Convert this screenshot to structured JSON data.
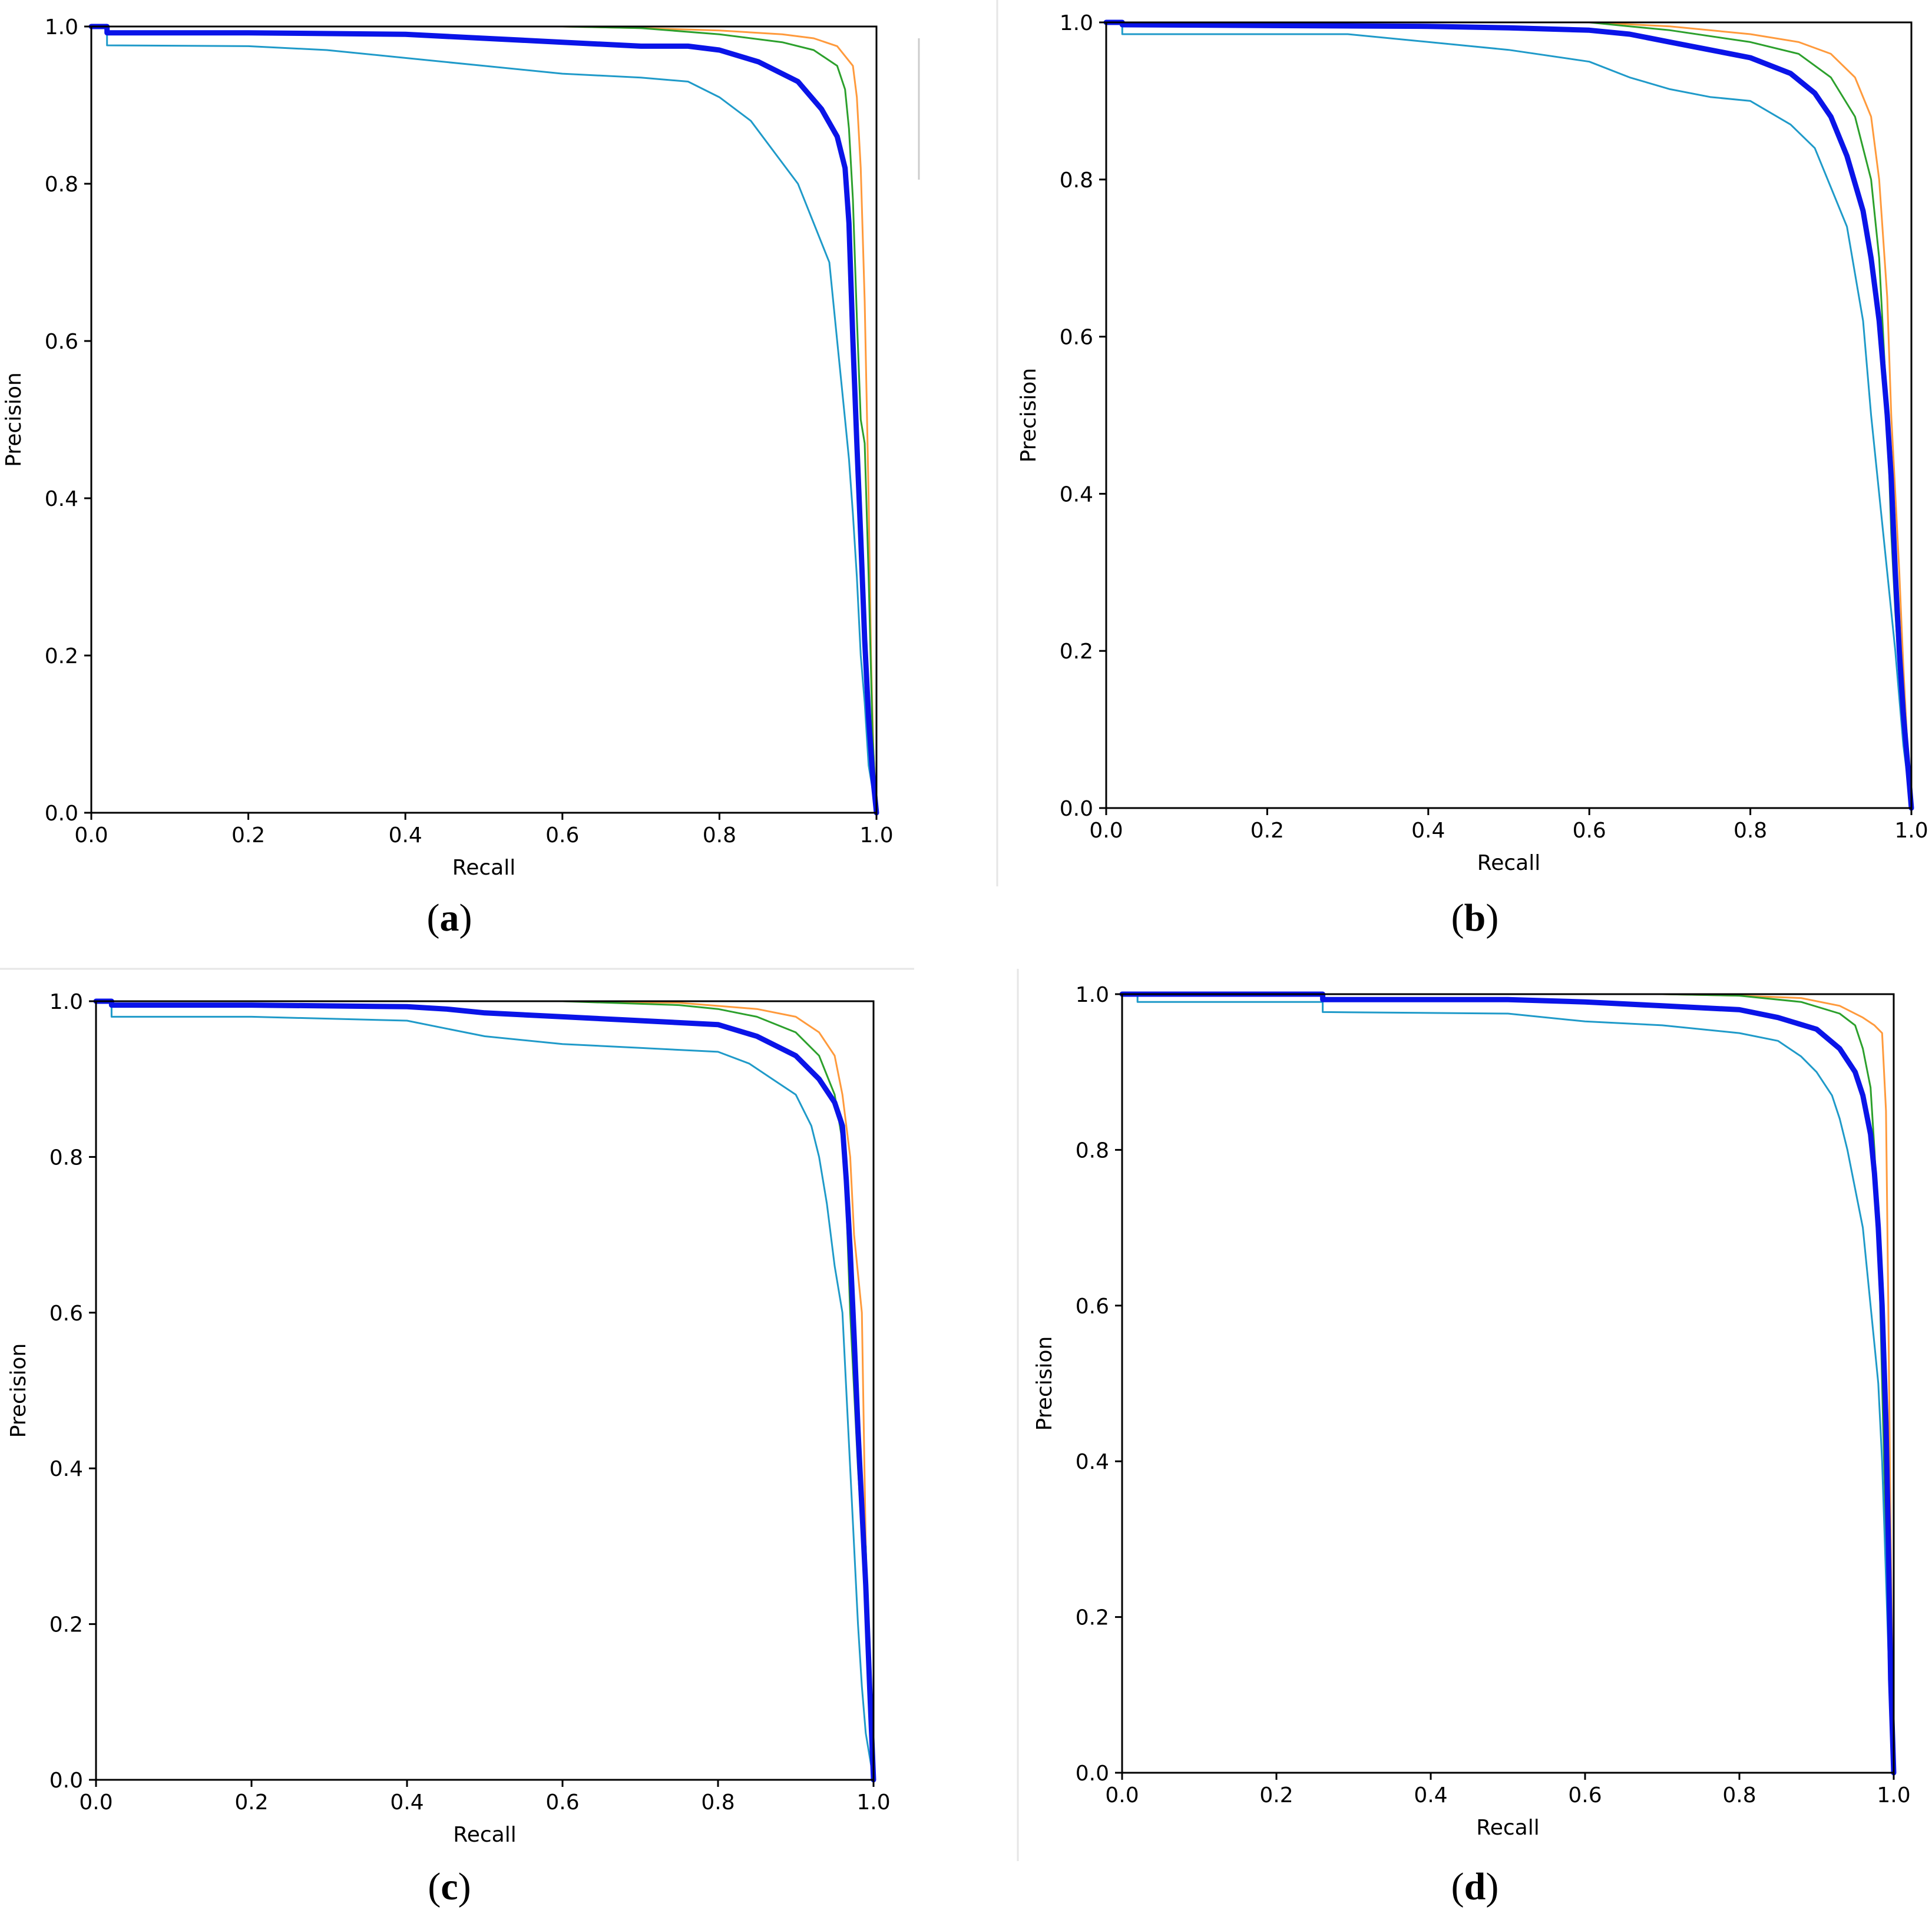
{
  "panel_labels": [
    {
      "pre": "(",
      "letter": "a",
      "post": ")"
    },
    {
      "pre": "(",
      "letter": "b",
      "post": ")"
    },
    {
      "pre": "(",
      "letter": "c",
      "post": ")"
    },
    {
      "pre": "(",
      "letter": "d",
      "post": ")"
    }
  ],
  "colors": {
    "mean": "#0a14e8",
    "orange": "#ff9a3c",
    "green": "#2ca02c",
    "cyan": "#1f9ac9",
    "axis": "#000000",
    "separator": "#e6e6e6"
  },
  "chart_data": [
    {
      "type": "line",
      "panel": "a",
      "xlabel": "Recall",
      "ylabel": "Precision",
      "xlim": [
        0,
        1
      ],
      "ylim": [
        0,
        1
      ],
      "xticks": [
        "0.0",
        "0.2",
        "0.4",
        "0.6",
        "0.8",
        "1.0"
      ],
      "yticks": [
        "0.0",
        "0.2",
        "0.4",
        "0.6",
        "0.8",
        "1.0"
      ],
      "grid": false,
      "series": [
        {
          "color": "orange",
          "width": 3,
          "x": [
            0.47,
            0.6,
            0.7,
            0.8,
            0.88,
            0.92,
            0.95,
            0.97,
            0.975,
            0.98,
            0.985,
            0.99,
            0.993,
            0.996,
            1.0
          ],
          "y": [
            1.0,
            1.0,
            0.998,
            0.995,
            0.99,
            0.985,
            0.975,
            0.95,
            0.91,
            0.82,
            0.65,
            0.4,
            0.2,
            0.08,
            0.0
          ]
        },
        {
          "color": "green",
          "width": 3,
          "x": [
            0.47,
            0.6,
            0.7,
            0.8,
            0.88,
            0.92,
            0.95,
            0.96,
            0.965,
            0.97,
            0.975,
            0.98,
            0.985,
            0.99,
            0.995,
            1.0
          ],
          "y": [
            1.0,
            1.0,
            0.998,
            0.99,
            0.98,
            0.97,
            0.95,
            0.92,
            0.87,
            0.78,
            0.63,
            0.5,
            0.47,
            0.3,
            0.1,
            0.0
          ]
        },
        {
          "color": "cyan",
          "width": 3,
          "x": [
            0.0,
            0.02,
            0.02,
            0.2,
            0.3,
            0.4,
            0.5,
            0.6,
            0.7,
            0.76,
            0.8,
            0.84,
            0.87,
            0.9,
            0.92,
            0.94,
            0.95,
            0.96,
            0.965,
            0.97,
            0.975,
            0.98,
            0.985,
            0.99,
            1.0
          ],
          "y": [
            1.0,
            1.0,
            0.976,
            0.975,
            0.97,
            0.96,
            0.95,
            0.94,
            0.935,
            0.93,
            0.91,
            0.88,
            0.84,
            0.8,
            0.75,
            0.7,
            0.6,
            0.5,
            0.45,
            0.38,
            0.3,
            0.2,
            0.14,
            0.06,
            0.0
          ]
        },
        {
          "color": "mean",
          "width": 9,
          "x": [
            0.0,
            0.02,
            0.02,
            0.2,
            0.4,
            0.5,
            0.6,
            0.7,
            0.76,
            0.8,
            0.85,
            0.9,
            0.93,
            0.95,
            0.96,
            0.965,
            0.97,
            0.975,
            0.98,
            0.985,
            0.99,
            0.995,
            1.0
          ],
          "y": [
            1.0,
            1.0,
            0.992,
            0.992,
            0.99,
            0.985,
            0.98,
            0.975,
            0.975,
            0.97,
            0.955,
            0.93,
            0.895,
            0.86,
            0.82,
            0.75,
            0.6,
            0.47,
            0.35,
            0.22,
            0.12,
            0.05,
            0.0
          ]
        }
      ]
    },
    {
      "type": "line",
      "panel": "b",
      "xlabel": "Recall",
      "ylabel": "Precision",
      "xlim": [
        0,
        1
      ],
      "ylim": [
        0,
        1
      ],
      "xticks": [
        "0.0",
        "0.2",
        "0.4",
        "0.6",
        "0.8",
        "1.0"
      ],
      "yticks": [
        "0.0",
        "0.2",
        "0.4",
        "0.6",
        "0.8",
        "1.0"
      ],
      "grid": false,
      "series": [
        {
          "color": "orange",
          "width": 3,
          "x": [
            0.45,
            0.6,
            0.7,
            0.8,
            0.86,
            0.9,
            0.93,
            0.95,
            0.96,
            0.97,
            0.975,
            0.98,
            0.985,
            0.99,
            0.995,
            1.0
          ],
          "y": [
            1.0,
            1.0,
            0.995,
            0.985,
            0.975,
            0.96,
            0.93,
            0.88,
            0.8,
            0.65,
            0.5,
            0.4,
            0.3,
            0.18,
            0.08,
            0.0
          ]
        },
        {
          "color": "green",
          "width": 3,
          "x": [
            0.45,
            0.6,
            0.65,
            0.7,
            0.8,
            0.86,
            0.9,
            0.93,
            0.95,
            0.96,
            0.965,
            0.97,
            0.975,
            0.98,
            0.985,
            0.99,
            0.995,
            1.0
          ],
          "y": [
            1.0,
            1.0,
            0.995,
            0.99,
            0.975,
            0.96,
            0.93,
            0.88,
            0.8,
            0.7,
            0.6,
            0.5,
            0.35,
            0.25,
            0.17,
            0.15,
            0.08,
            0.0
          ]
        },
        {
          "color": "cyan",
          "width": 3,
          "x": [
            0.0,
            0.02,
            0.02,
            0.3,
            0.45,
            0.5,
            0.6,
            0.65,
            0.7,
            0.75,
            0.8,
            0.85,
            0.88,
            0.9,
            0.92,
            0.93,
            0.94,
            0.95,
            0.96,
            0.97,
            0.98,
            0.99,
            1.0
          ],
          "y": [
            1.0,
            1.0,
            0.985,
            0.985,
            0.97,
            0.965,
            0.95,
            0.93,
            0.915,
            0.905,
            0.9,
            0.87,
            0.84,
            0.79,
            0.74,
            0.68,
            0.62,
            0.5,
            0.4,
            0.3,
            0.2,
            0.08,
            0.0
          ]
        },
        {
          "color": "mean",
          "width": 9,
          "x": [
            0.0,
            0.02,
            0.02,
            0.4,
            0.5,
            0.6,
            0.65,
            0.7,
            0.75,
            0.8,
            0.85,
            0.88,
            0.9,
            0.92,
            0.94,
            0.95,
            0.96,
            0.97,
            0.975,
            0.98,
            0.985,
            0.99,
            0.995,
            1.0
          ],
          "y": [
            1.0,
            1.0,
            0.997,
            0.995,
            0.993,
            0.99,
            0.985,
            0.975,
            0.965,
            0.955,
            0.935,
            0.91,
            0.88,
            0.83,
            0.76,
            0.7,
            0.62,
            0.5,
            0.42,
            0.3,
            0.2,
            0.12,
            0.06,
            0.0
          ]
        }
      ]
    },
    {
      "type": "line",
      "panel": "c",
      "xlabel": "Recall",
      "ylabel": "Precision",
      "xlim": [
        0,
        1
      ],
      "ylim": [
        0,
        1
      ],
      "xticks": [
        "0.0",
        "0.2",
        "0.4",
        "0.6",
        "0.8",
        "1.0"
      ],
      "yticks": [
        "0.0",
        "0.2",
        "0.4",
        "0.6",
        "0.8",
        "1.0"
      ],
      "grid": false,
      "series": [
        {
          "color": "orange",
          "width": 3,
          "x": [
            0.6,
            0.75,
            0.85,
            0.9,
            0.93,
            0.95,
            0.96,
            0.97,
            0.975,
            0.98,
            0.985,
            0.99,
            0.995,
            1.0
          ],
          "y": [
            1.0,
            0.998,
            0.99,
            0.98,
            0.96,
            0.93,
            0.88,
            0.8,
            0.7,
            0.65,
            0.6,
            0.3,
            0.12,
            0.0
          ]
        },
        {
          "color": "green",
          "width": 3,
          "x": [
            0.6,
            0.75,
            0.8,
            0.85,
            0.9,
            0.93,
            0.95,
            0.96,
            0.965,
            0.97,
            0.975,
            0.98,
            0.985,
            0.99,
            0.995,
            1.0
          ],
          "y": [
            1.0,
            0.995,
            0.99,
            0.98,
            0.96,
            0.93,
            0.88,
            0.82,
            0.74,
            0.6,
            0.5,
            0.4,
            0.32,
            0.3,
            0.1,
            0.0
          ]
        },
        {
          "color": "cyan",
          "width": 3,
          "x": [
            0.0,
            0.02,
            0.02,
            0.2,
            0.4,
            0.45,
            0.5,
            0.6,
            0.7,
            0.8,
            0.84,
            0.87,
            0.9,
            0.92,
            0.93,
            0.94,
            0.95,
            0.96,
            0.965,
            0.97,
            0.975,
            0.98,
            0.985,
            0.99,
            1.0
          ],
          "y": [
            1.0,
            1.0,
            0.98,
            0.98,
            0.975,
            0.965,
            0.955,
            0.945,
            0.94,
            0.935,
            0.92,
            0.9,
            0.88,
            0.84,
            0.8,
            0.74,
            0.66,
            0.6,
            0.5,
            0.4,
            0.3,
            0.2,
            0.12,
            0.06,
            0.0
          ]
        },
        {
          "color": "mean",
          "width": 9,
          "x": [
            0.0,
            0.02,
            0.02,
            0.2,
            0.4,
            0.45,
            0.5,
            0.6,
            0.7,
            0.8,
            0.85,
            0.9,
            0.93,
            0.95,
            0.96,
            0.965,
            0.97,
            0.975,
            0.98,
            0.985,
            0.99,
            0.995,
            1.0
          ],
          "y": [
            1.0,
            1.0,
            0.995,
            0.995,
            0.993,
            0.99,
            0.985,
            0.98,
            0.975,
            0.97,
            0.955,
            0.93,
            0.9,
            0.87,
            0.84,
            0.77,
            0.68,
            0.57,
            0.45,
            0.35,
            0.25,
            0.12,
            0.0
          ]
        }
      ]
    },
    {
      "type": "line",
      "panel": "d",
      "xlabel": "Recall",
      "ylabel": "Precision",
      "xlim": [
        0,
        1
      ],
      "ylim": [
        0,
        1
      ],
      "xticks": [
        "0.0",
        "0.2",
        "0.4",
        "0.6",
        "0.8",
        "1.0"
      ],
      "yticks": [
        "0.0",
        "0.2",
        "0.4",
        "0.6",
        "0.8",
        "1.0"
      ],
      "grid": false,
      "series": [
        {
          "color": "orange",
          "width": 3,
          "x": [
            0.55,
            0.7,
            0.8,
            0.88,
            0.93,
            0.96,
            0.975,
            0.985,
            0.99,
            0.993,
            0.996,
            1.0
          ],
          "y": [
            1.0,
            1.0,
            0.998,
            0.995,
            0.985,
            0.97,
            0.96,
            0.95,
            0.85,
            0.6,
            0.3,
            0.0
          ]
        },
        {
          "color": "green",
          "width": 3,
          "x": [
            0.55,
            0.7,
            0.8,
            0.88,
            0.93,
            0.95,
            0.96,
            0.97,
            0.975,
            0.98,
            0.985,
            0.99,
            0.995,
            1.0
          ],
          "y": [
            1.0,
            1.0,
            0.998,
            0.99,
            0.975,
            0.96,
            0.93,
            0.88,
            0.8,
            0.7,
            0.5,
            0.3,
            0.1,
            0.0
          ]
        },
        {
          "color": "cyan",
          "width": 3,
          "x": [
            0.0,
            0.02,
            0.02,
            0.26,
            0.26,
            0.5,
            0.6,
            0.7,
            0.8,
            0.85,
            0.88,
            0.9,
            0.92,
            0.93,
            0.94,
            0.95,
            0.96,
            0.97,
            0.975,
            0.98,
            0.985,
            0.99,
            0.995,
            1.0
          ],
          "y": [
            1.0,
            1.0,
            0.99,
            0.99,
            0.977,
            0.975,
            0.965,
            0.96,
            0.95,
            0.94,
            0.92,
            0.9,
            0.87,
            0.84,
            0.8,
            0.75,
            0.7,
            0.6,
            0.55,
            0.5,
            0.4,
            0.25,
            0.1,
            0.0
          ]
        },
        {
          "color": "mean",
          "width": 9,
          "x": [
            0.0,
            0.02,
            0.26,
            0.26,
            0.5,
            0.6,
            0.7,
            0.8,
            0.85,
            0.9,
            0.93,
            0.95,
            0.96,
            0.97,
            0.975,
            0.98,
            0.985,
            0.99,
            0.993,
            0.996,
            1.0
          ],
          "y": [
            1.0,
            1.0,
            1.0,
            0.993,
            0.993,
            0.99,
            0.985,
            0.98,
            0.97,
            0.955,
            0.93,
            0.9,
            0.87,
            0.82,
            0.77,
            0.7,
            0.6,
            0.45,
            0.3,
            0.12,
            0.0
          ]
        }
      ]
    }
  ]
}
